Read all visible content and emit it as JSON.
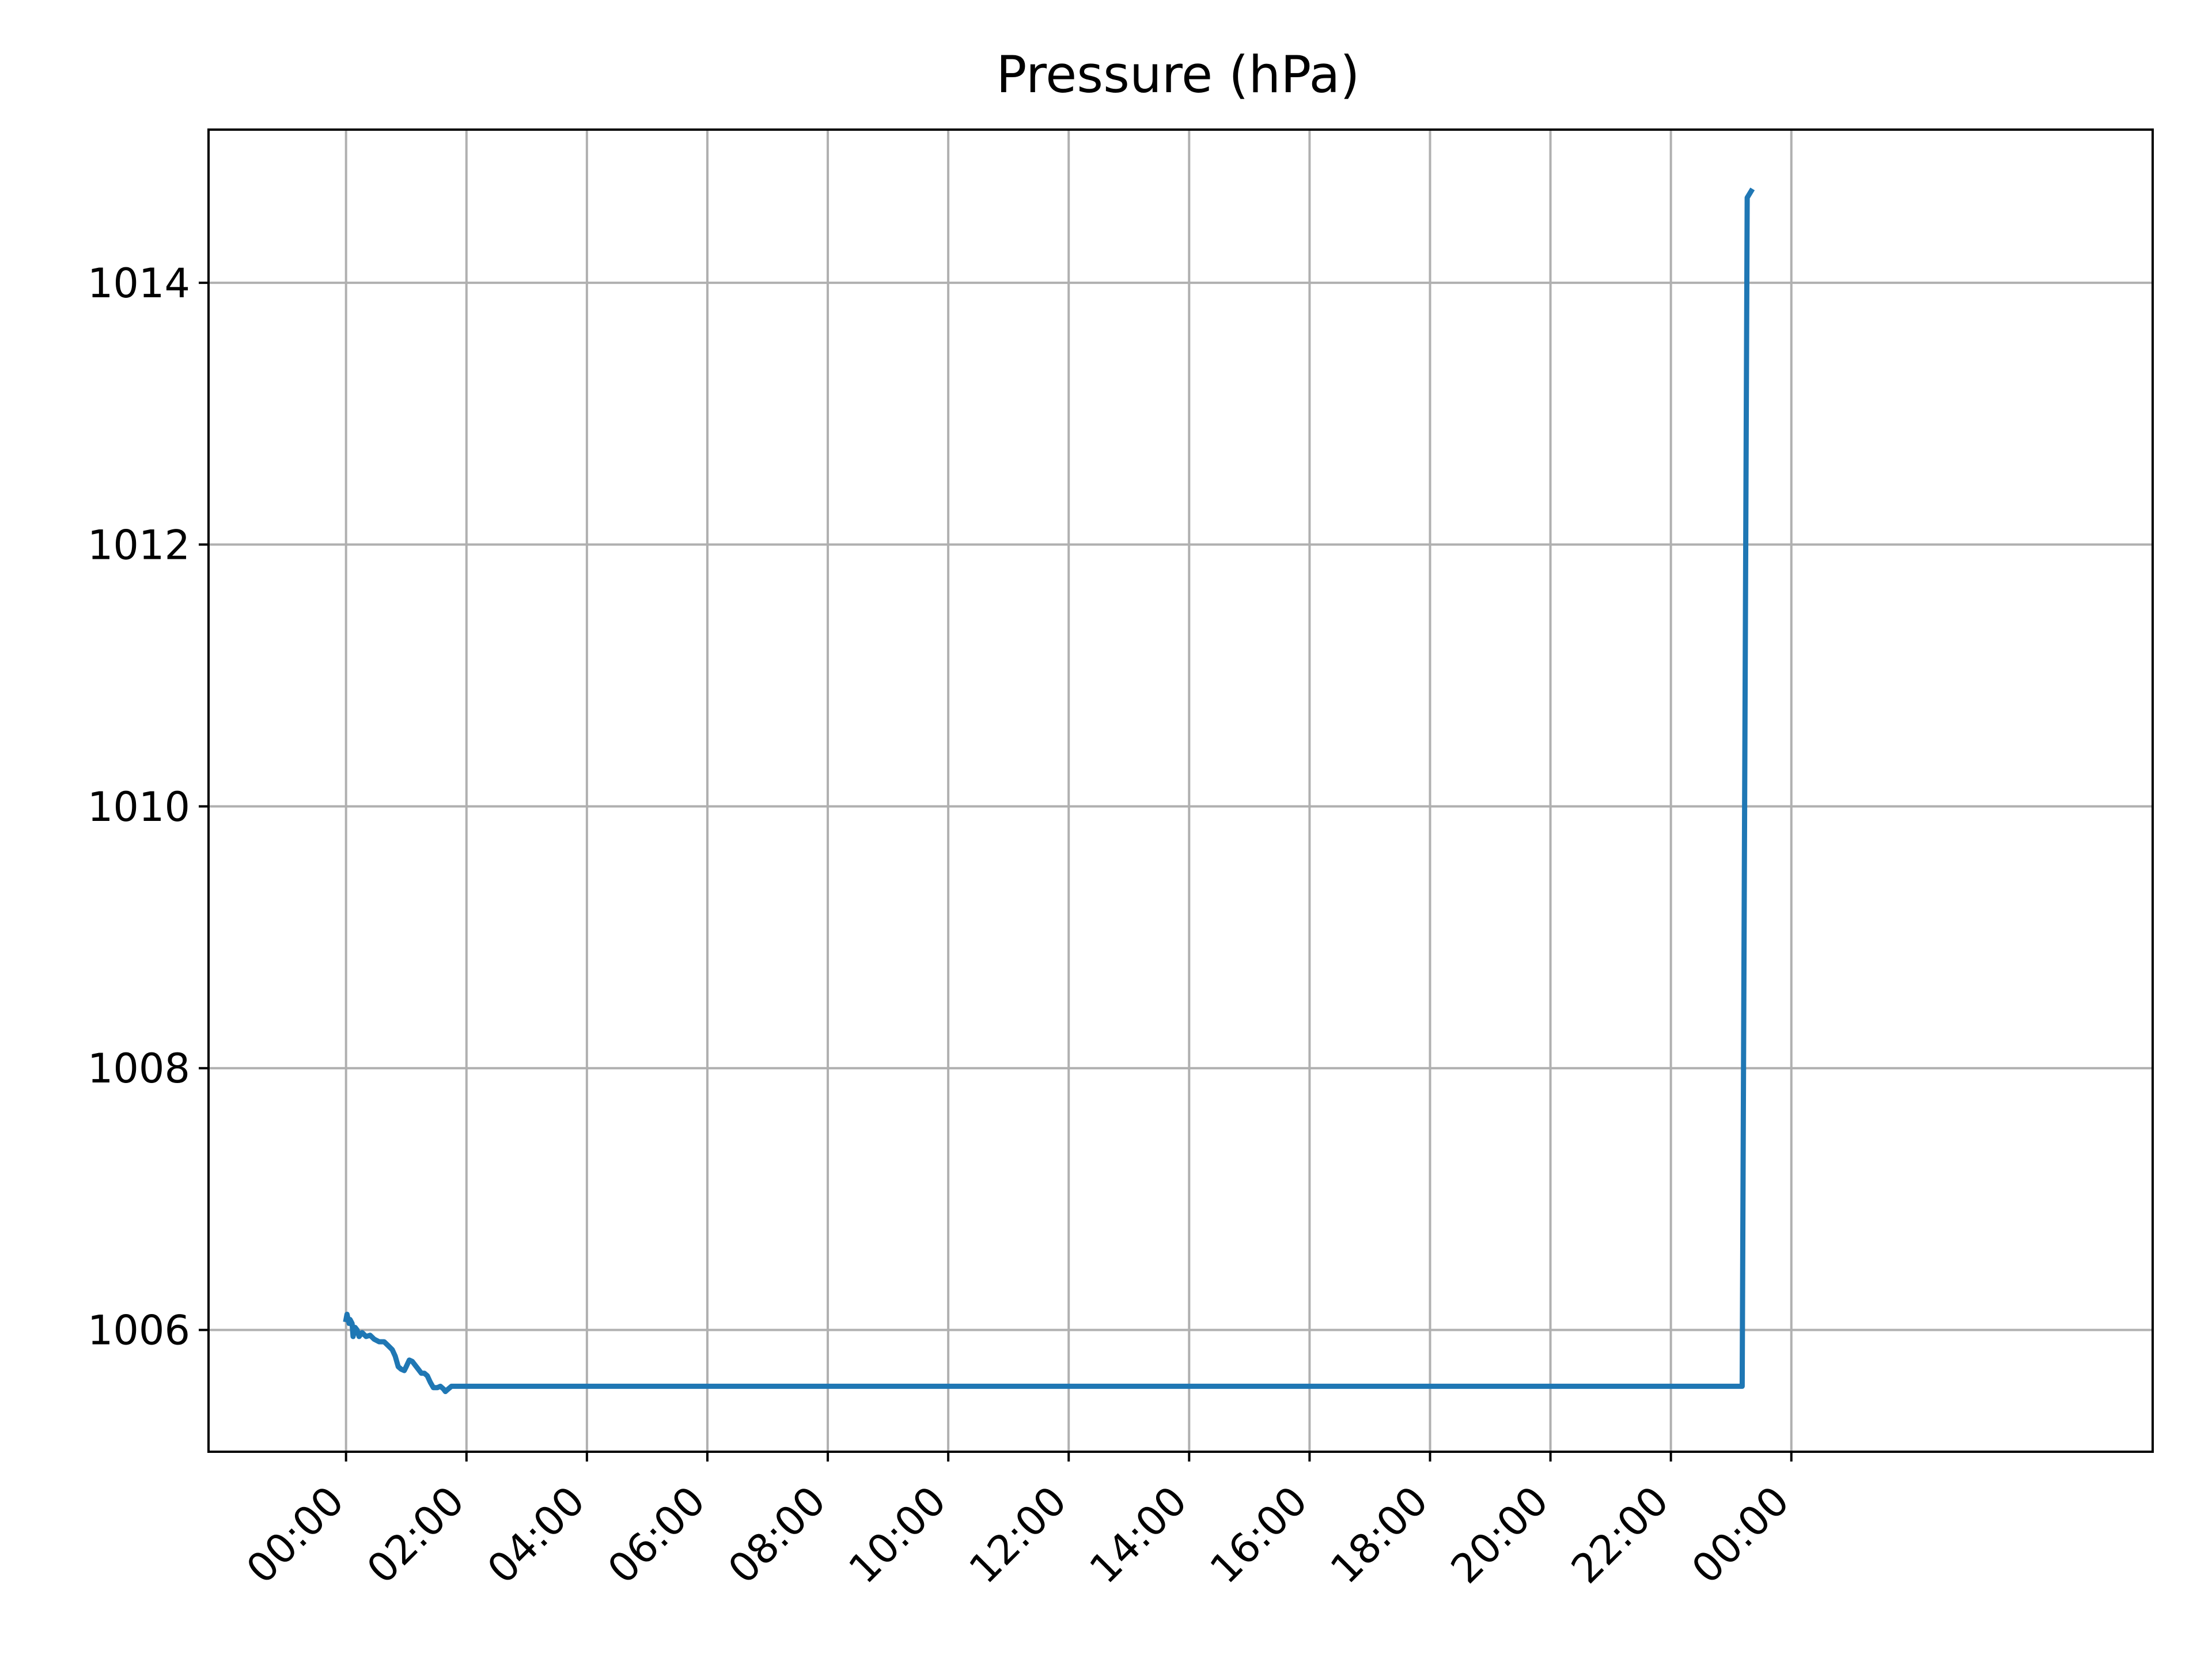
{
  "chart_data": {
    "type": "line",
    "title": "Pressure (hPa)",
    "xlabel": "",
    "ylabel": "",
    "xlim_minutes": [
      -137,
      1800
    ],
    "ylim": [
      1005.07,
      1015.17
    ],
    "grid": true,
    "legend": "none",
    "x_ticks": [
      {
        "label": "00:00",
        "minutes": 0
      },
      {
        "label": "02:00",
        "minutes": 120
      },
      {
        "label": "04:00",
        "minutes": 240
      },
      {
        "label": "06:00",
        "minutes": 360
      },
      {
        "label": "08:00",
        "minutes": 480
      },
      {
        "label": "10:00",
        "minutes": 600
      },
      {
        "label": "12:00",
        "minutes": 720
      },
      {
        "label": "14:00",
        "minutes": 840
      },
      {
        "label": "16:00",
        "minutes": 960
      },
      {
        "label": "18:00",
        "minutes": 1080
      },
      {
        "label": "20:00",
        "minutes": 1200
      },
      {
        "label": "22:00",
        "minutes": 1320
      },
      {
        "label": "00:00",
        "minutes": 1440
      }
    ],
    "y_ticks": [
      1006,
      1008,
      1010,
      1012,
      1014
    ],
    "series": [
      {
        "color": "#1f77b4",
        "points": [
          {
            "x": "00:00",
            "y": 1006.08
          },
          {
            "x": "00:01",
            "y": 1006.12
          },
          {
            "x": "00:03",
            "y": 1006.05
          },
          {
            "x": "00:04",
            "y": 1006.08
          },
          {
            "x": "00:06",
            "y": 1006.05
          },
          {
            "x": "00:07",
            "y": 1005.95
          },
          {
            "x": "00:09",
            "y": 1006.02
          },
          {
            "x": "00:11",
            "y": 1006.0
          },
          {
            "x": "00:13",
            "y": 1005.95
          },
          {
            "x": "00:16",
            "y": 1005.98
          },
          {
            "x": "00:20",
            "y": 1005.95
          },
          {
            "x": "00:24",
            "y": 1005.96
          },
          {
            "x": "00:28",
            "y": 1005.93
          },
          {
            "x": "00:33",
            "y": 1005.91
          },
          {
            "x": "00:38",
            "y": 1005.91
          },
          {
            "x": "00:42",
            "y": 1005.88
          },
          {
            "x": "00:46",
            "y": 1005.85
          },
          {
            "x": "00:49",
            "y": 1005.8
          },
          {
            "x": "00:52",
            "y": 1005.72
          },
          {
            "x": "00:55",
            "y": 1005.7
          },
          {
            "x": "00:58",
            "y": 1005.69
          },
          {
            "x": "01:00",
            "y": 1005.72
          },
          {
            "x": "01:03",
            "y": 1005.77
          },
          {
            "x": "01:06",
            "y": 1005.76
          },
          {
            "x": "01:09",
            "y": 1005.73
          },
          {
            "x": "01:12",
            "y": 1005.7
          },
          {
            "x": "01:15",
            "y": 1005.67
          },
          {
            "x": "01:18",
            "y": 1005.67
          },
          {
            "x": "01:21",
            "y": 1005.65
          },
          {
            "x": "01:24",
            "y": 1005.6
          },
          {
            "x": "01:27",
            "y": 1005.56
          },
          {
            "x": "01:31",
            "y": 1005.56
          },
          {
            "x": "01:34",
            "y": 1005.57
          },
          {
            "x": "01:37",
            "y": 1005.55
          },
          {
            "x": "01:39",
            "y": 1005.53
          },
          {
            "x": "01:42",
            "y": 1005.55
          },
          {
            "x": "01:45",
            "y": 1005.57
          },
          {
            "x": "23:11",
            "y": 1005.57
          },
          {
            "x": "23:16",
            "y": 1014.65
          },
          {
            "x": "23:20",
            "y": 1014.7
          }
        ]
      }
    ]
  }
}
